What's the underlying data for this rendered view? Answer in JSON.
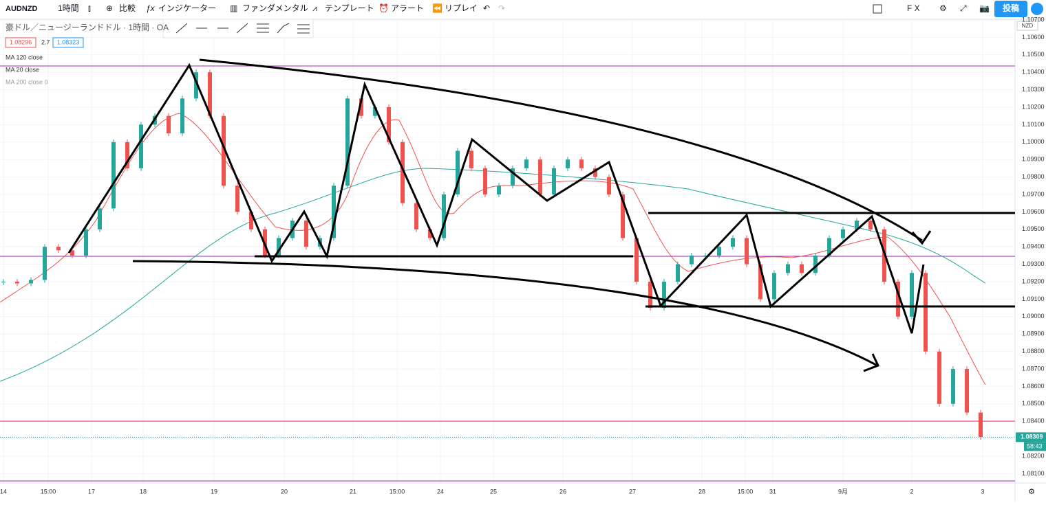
{
  "toolbar": {
    "symbol": "AUDNZD",
    "interval": "1時間",
    "compare": "比較",
    "indicators": "インジケーター",
    "fundamentals": "ファンダメンタル",
    "templates": "テンプレート",
    "alert": "アラート",
    "replay": "リプレイ",
    "market": "F X",
    "publish": "投稿"
  },
  "legend": {
    "title": "豪ドル／ニュージーランドドル · 1時間 · OA",
    "bid": "1.08296",
    "spread": "2.7",
    "ask": "1.08323",
    "studies": [
      "MA 120 close",
      "MA 20 close",
      "MA 200 close 0"
    ]
  },
  "price_axis": {
    "currency": "NZD",
    "ticks": [
      {
        "value": 1.081,
        "label": "1.08100"
      },
      {
        "value": 1.082,
        "label": "1.08200"
      },
      {
        "value": 1.083,
        "label": "1.08300"
      },
      {
        "value": 1.084,
        "label": "1.08400"
      },
      {
        "value": 1.085,
        "label": "1.08500"
      },
      {
        "value": 1.086,
        "label": "1.08600"
      },
      {
        "value": 1.087,
        "label": "1.08700"
      },
      {
        "value": 1.088,
        "label": "1.08800"
      },
      {
        "value": 1.089,
        "label": "1.08900"
      },
      {
        "value": 1.09,
        "label": "1.09000"
      },
      {
        "value": 1.091,
        "label": "1.09100"
      },
      {
        "value": 1.092,
        "label": "1.09200"
      },
      {
        "value": 1.093,
        "label": "1.09300"
      },
      {
        "value": 1.094,
        "label": "1.09400"
      },
      {
        "value": 1.095,
        "label": "1.09500"
      },
      {
        "value": 1.096,
        "label": "1.09600"
      },
      {
        "value": 1.097,
        "label": "1.09700"
      },
      {
        "value": 1.098,
        "label": "1.09800"
      },
      {
        "value": 1.099,
        "label": "1.09900"
      },
      {
        "value": 1.1,
        "label": "1.10000"
      },
      {
        "value": 1.101,
        "label": "1.10100"
      },
      {
        "value": 1.102,
        "label": "1.10200"
      },
      {
        "value": 1.103,
        "label": "1.10300"
      },
      {
        "value": 1.104,
        "label": "1.10400"
      },
      {
        "value": 1.105,
        "label": "1.10500"
      },
      {
        "value": 1.106,
        "label": "1.10600"
      },
      {
        "value": 1.107,
        "label": "1.10700"
      }
    ],
    "last_price": {
      "value": 1.08309,
      "label": "1.08309"
    },
    "countdown": "58:43"
  },
  "time_axis": [
    "14",
    "15:00",
    "17",
    "18",
    "19",
    "20",
    "21",
    "15:00",
    "24",
    "25",
    "26",
    "27",
    "28",
    "15:00",
    "31",
    "9月",
    "2",
    "3"
  ],
  "price_chart": {
    "closes": [
      1.092,
      1.0919,
      1.0921,
      1.094,
      1.0938,
      1.0935,
      1.095,
      1.0962,
      1.1,
      1.0985,
      1.101,
      1.1015,
      1.1005,
      1.1025,
      1.104,
      1.1015,
      1.0975,
      1.096,
      1.095,
      1.0935,
      1.0945,
      1.0955,
      1.094,
      1.0945,
      1.0975,
      1.1025,
      1.1015,
      1.102,
      1.1,
      1.0965,
      1.095,
      1.0945,
      1.097,
      1.0995,
      1.0985,
      1.097,
      1.0975,
      1.0985,
      1.099,
      1.097,
      1.0985,
      1.099,
      1.0985,
      1.098,
      1.097,
      1.0945,
      1.092,
      1.0905,
      1.092,
      1.093,
      1.0935,
      1.0935,
      1.094,
      1.0945,
      1.093,
      1.091,
      1.0925,
      1.093,
      1.0925,
      1.0935,
      1.0945,
      1.095,
      1.0955,
      1.095,
      1.092,
      1.09,
      1.0925,
      1.088,
      1.085,
      1.087,
      1.0845,
      1.0831
    ]
  }
}
